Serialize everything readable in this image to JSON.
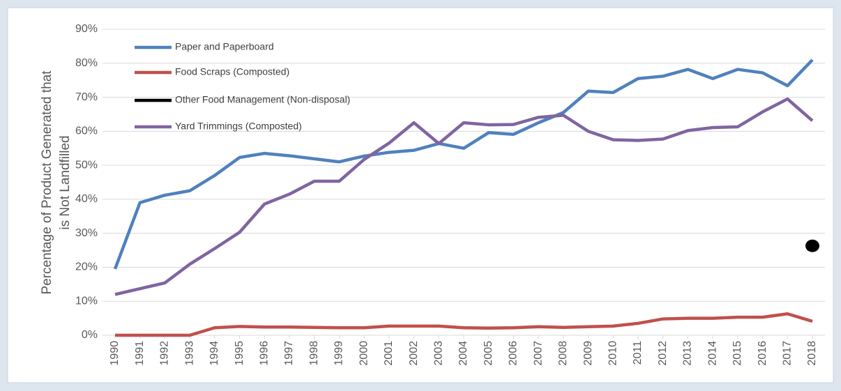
{
  "chart_data": {
    "type": "line",
    "y_label": [
      "Percentage of Product Generated that",
      "is Not Landfilled"
    ],
    "x": [
      1990,
      1991,
      1992,
      1993,
      1994,
      1995,
      1996,
      1997,
      1998,
      1999,
      2000,
      2001,
      2002,
      2003,
      2004,
      2005,
      2006,
      2007,
      2008,
      2009,
      2010,
      2011,
      2012,
      2013,
      2014,
      2015,
      2016,
      2017,
      2018
    ],
    "xlim": [
      1990,
      2018
    ],
    "xticks": [
      1990,
      1991,
      1992,
      1993,
      1994,
      1995,
      1996,
      1997,
      1998,
      1999,
      2000,
      2001,
      2002,
      2003,
      2004,
      2005,
      2006,
      2007,
      2008,
      2009,
      2010,
      2011,
      2012,
      2013,
      2014,
      2015,
      2016,
      2017,
      2018
    ],
    "ylim": [
      0,
      90
    ],
    "yticks": [
      {
        "value": 0,
        "label": "0%"
      },
      {
        "value": 10,
        "label": "10%"
      },
      {
        "value": 20,
        "label": "20%"
      },
      {
        "value": 30,
        "label": "30%"
      },
      {
        "value": 40,
        "label": "40%"
      },
      {
        "value": 50,
        "label": "50%"
      },
      {
        "value": 60,
        "label": "60%"
      },
      {
        "value": 70,
        "label": "70%"
      },
      {
        "value": 80,
        "label": "80%"
      },
      {
        "value": 90,
        "label": "90%"
      }
    ],
    "grid": true,
    "legend": "top-left",
    "series": [
      {
        "name": "Paper and Paperboard",
        "color": "#4f81bd",
        "values": [
          19.5,
          39,
          41.2,
          42.5,
          47,
          52.3,
          53.5,
          52.8,
          51.9,
          51,
          52.7,
          53.8,
          54.4,
          56.4,
          55,
          59.6,
          59.1,
          62.5,
          65.5,
          71.8,
          71.4,
          75.5,
          76.2,
          78.2,
          75.5,
          78.2,
          77.2,
          73.4,
          81.0
        ]
      },
      {
        "name": "Food Scraps (Composted)",
        "color": "#c0504d",
        "values": [
          0,
          0,
          0,
          0,
          2.2,
          2.6,
          2.4,
          2.4,
          2.3,
          2.2,
          2.2,
          2.7,
          2.7,
          2.7,
          2.2,
          2.1,
          2.2,
          2.5,
          2.3,
          2.5,
          2.7,
          3.5,
          4.8,
          5.0,
          5.0,
          5.3,
          5.3,
          6.3,
          4.1
        ]
      },
      {
        "name": "Other Food Management (Non-disposal)",
        "color": "#000000",
        "marker": "circle",
        "values": [
          null,
          null,
          null,
          null,
          null,
          null,
          null,
          null,
          null,
          null,
          null,
          null,
          null,
          null,
          null,
          null,
          null,
          null,
          null,
          null,
          null,
          null,
          null,
          null,
          null,
          null,
          null,
          null,
          26.3
        ]
      },
      {
        "name": "Yard Trimmings (Composted)",
        "color": "#8064a2",
        "values": [
          12,
          13.7,
          15.4,
          20.9,
          25.5,
          30.3,
          38.6,
          41.5,
          45.3,
          45.3,
          51.7,
          56.5,
          62.5,
          56.4,
          62.5,
          61.9,
          62.0,
          64.1,
          64.7,
          60.0,
          57.5,
          57.3,
          57.7,
          60.2,
          61.1,
          61.3,
          65.7,
          69.5,
          63.1
        ]
      }
    ]
  }
}
